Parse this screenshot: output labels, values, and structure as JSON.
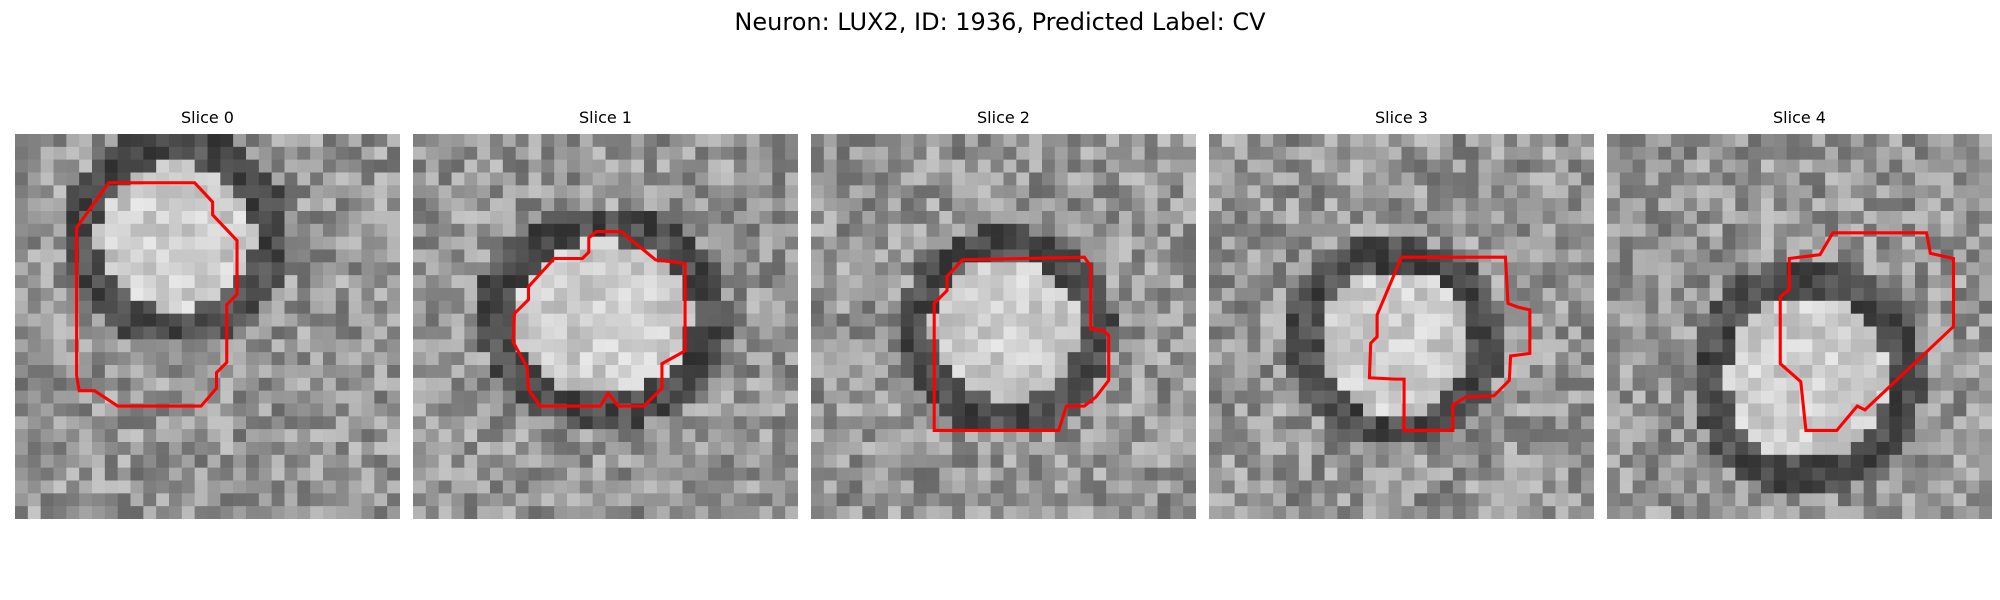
{
  "figure": {
    "title": "Neuron: LUX2, ID: 1936, Predicted Label: CV",
    "outline_color": "#ff0000"
  },
  "panels": [
    {
      "title": "Slice 0"
    },
    {
      "title": "Slice 1"
    },
    {
      "title": "Slice 2"
    },
    {
      "title": "Slice 3"
    },
    {
      "title": "Slice 4"
    }
  ]
}
